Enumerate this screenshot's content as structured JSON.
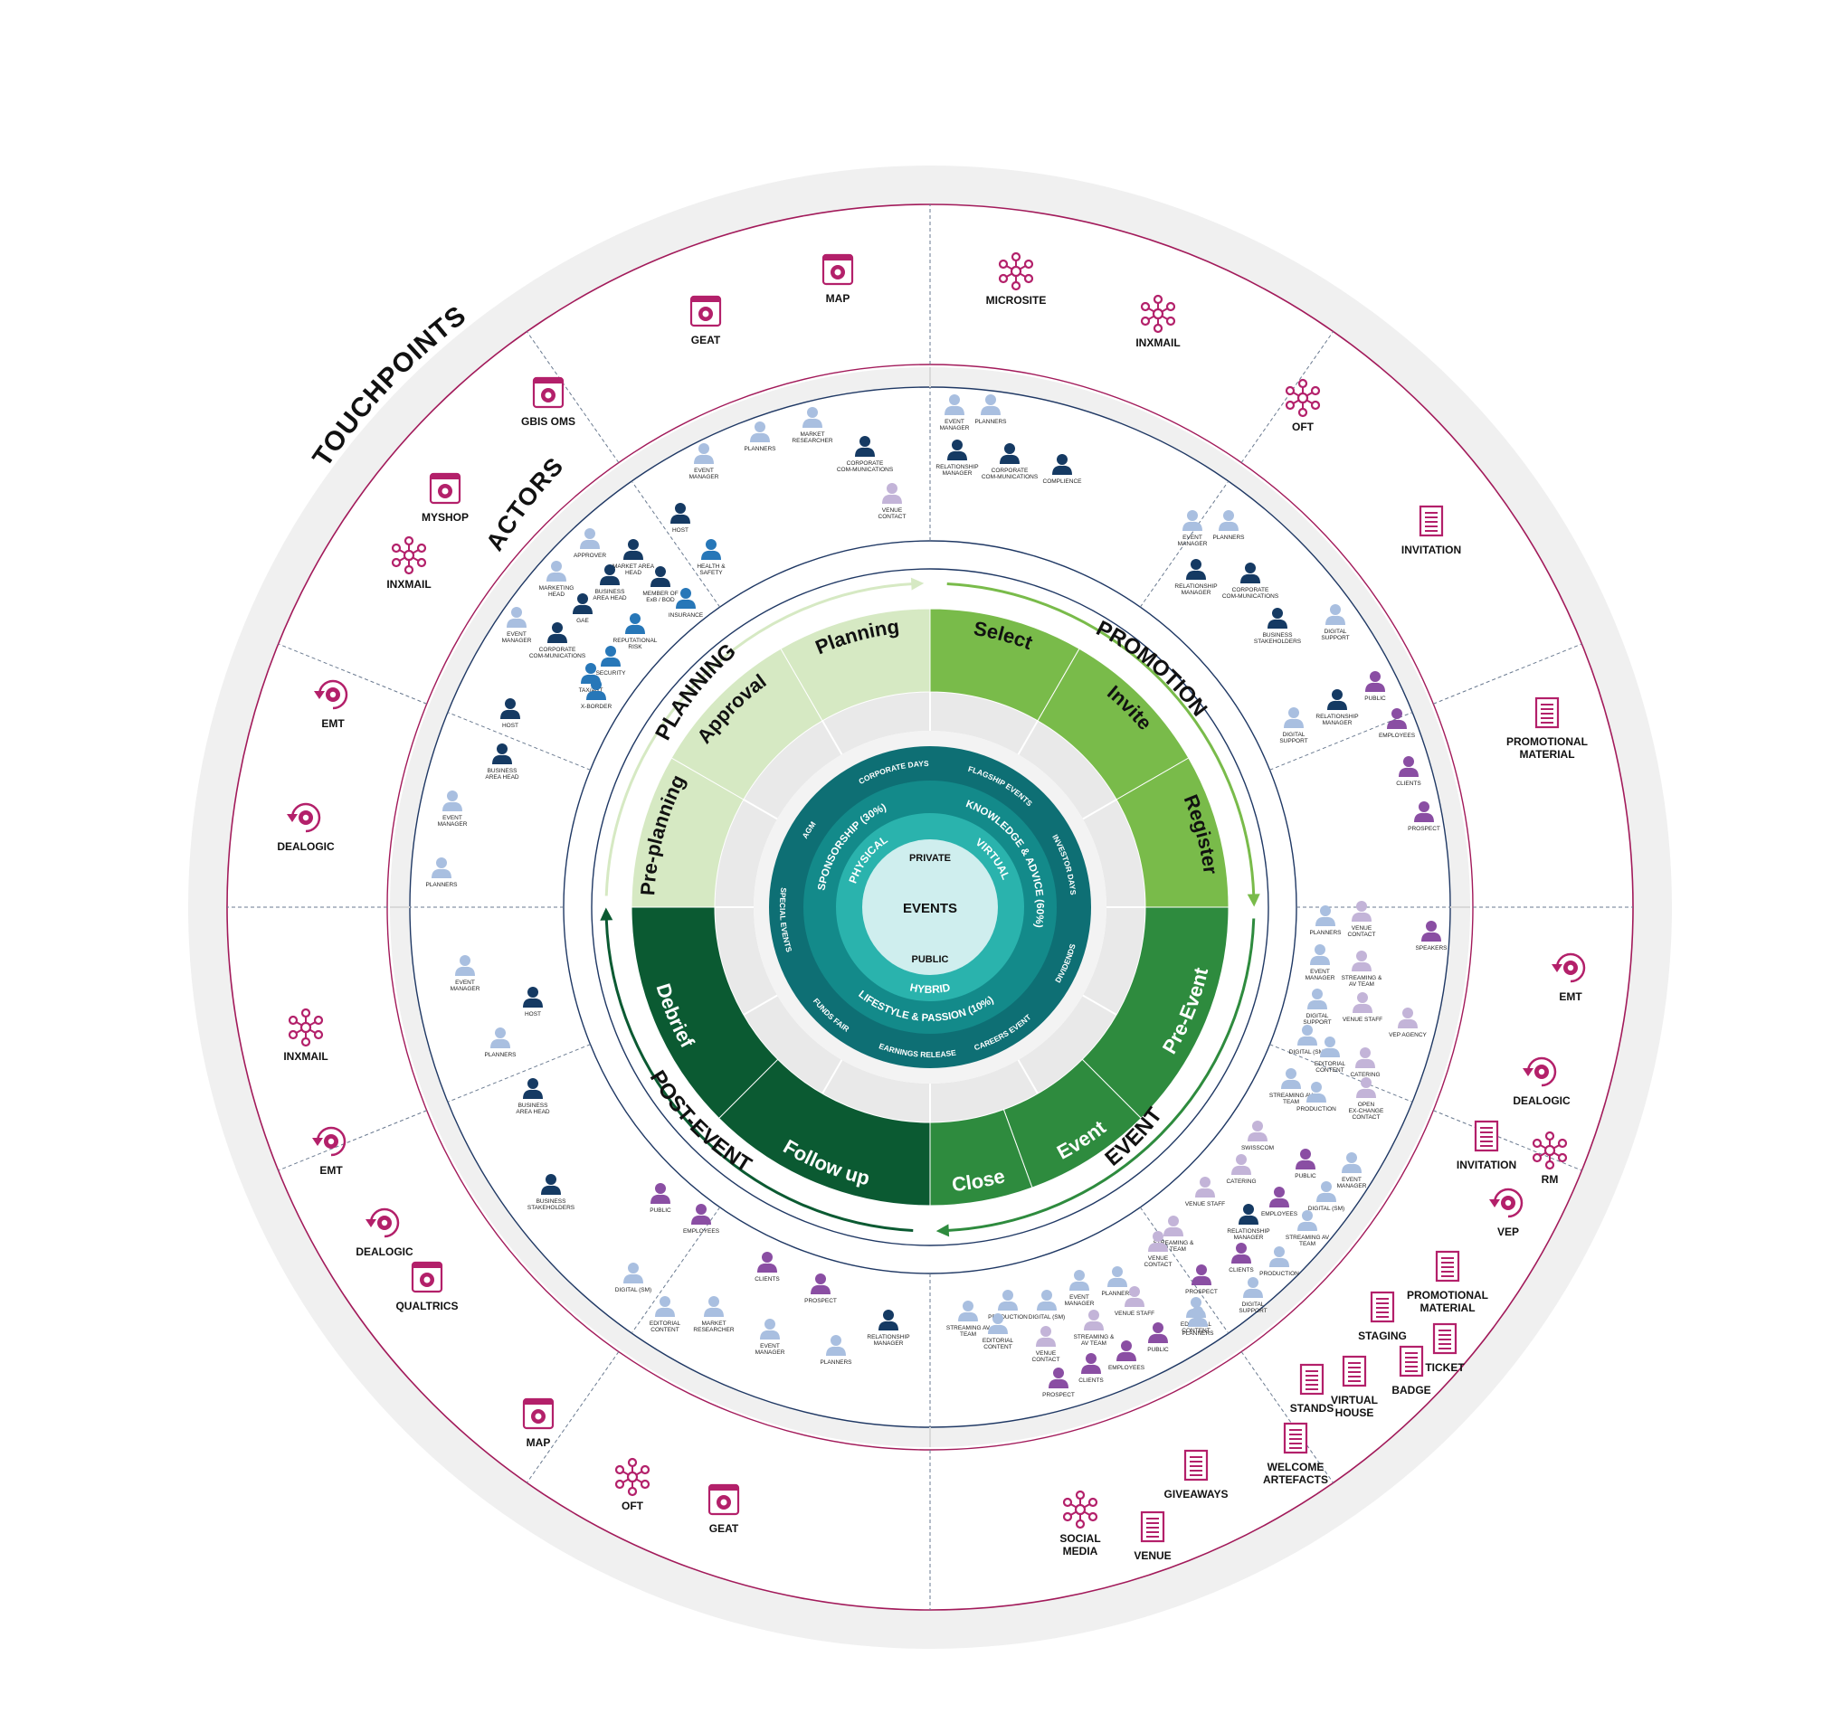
{
  "colors": {
    "magenta": "#b3206a",
    "dark_green": "#0b5a32",
    "mid_green": "#2e8b3e",
    "light_green": "#79bb4a",
    "pale_green": "#d6e9c3",
    "navy": "#1f3864",
    "ring_grey": "#f0f0f0",
    "actor_light": "#a9bfe0",
    "actor_dark": "#153a63",
    "actor_purple": "#8a4ea3",
    "actor_blue": "#2777b8",
    "teal_core": "#0f7a7a"
  },
  "ring_titles": {
    "touchpoints": "TOUCHPOINTS",
    "actors": "ACTORS"
  },
  "phases": [
    "PLANNING",
    "PROMOTION",
    "EVENT",
    "POST-EVENT"
  ],
  "steps": [
    "Pre-planning",
    "Approval",
    "Planning",
    "Select",
    "Invite",
    "Register",
    "Pre-Event",
    "Event",
    "Close",
    "Follow up",
    "Debrief"
  ],
  "core": {
    "center": "EVENTS",
    "private": "PRIVATE",
    "public": "PUBLIC",
    "physical": "PHYSICAL",
    "virtual": "VIRTUAL",
    "hybrid": "HYBRID",
    "sponsorship": "SPONSORSHIP (30%)",
    "knowledge": "KNOWLEDGE & ADVICE (60%)",
    "lifestyle": "LIFESTYLE & PASSION (10%)",
    "outer": [
      "CORPORATE DAYS",
      "FLAGSHIP EVENTS",
      "INVESTOR DAYS",
      "DIVIDENDS",
      "CAREERS EVENT",
      "EARNINGS RELEASE",
      "FUNDS FAIR",
      "SPECIAL EVENTS",
      "AGM"
    ]
  },
  "touchpoints": [
    {
      "label": "MAP",
      "icon": "gear-doc-icon"
    },
    {
      "label": "GEAT",
      "icon": "gear-doc-icon"
    },
    {
      "label": "GBIS OMS",
      "icon": "gear-doc-icon"
    },
    {
      "label": "MYSHOP",
      "icon": "gear-doc-icon"
    },
    {
      "label": "INXMAIL",
      "icon": "network-icon"
    },
    {
      "label": "EMT",
      "icon": "gear-cycle-icon"
    },
    {
      "label": "DEALOGIC",
      "icon": "gear-cycle-icon"
    },
    {
      "label": "MICROSITE",
      "icon": "network-icon"
    },
    {
      "label": "INXMAIL",
      "icon": "network-icon"
    },
    {
      "label": "OFT",
      "icon": "network-icon"
    },
    {
      "label": "INVITATION",
      "icon": "document-icon"
    },
    {
      "label": "PROMOTIONAL MATERIAL",
      "icon": "document-icon"
    },
    {
      "label": "EMT",
      "icon": "gear-cycle-icon"
    },
    {
      "label": "DEALOGIC",
      "icon": "gear-cycle-icon"
    },
    {
      "label": "INVITATION",
      "icon": "document-icon"
    },
    {
      "label": "RM",
      "icon": "network-icon"
    },
    {
      "label": "VEP",
      "icon": "gear-cycle-icon"
    },
    {
      "label": "PROMOTIONAL MATERIAL",
      "icon": "document-icon"
    },
    {
      "label": "STAGING",
      "icon": "document-icon"
    },
    {
      "label": "TICKET",
      "icon": "document-icon"
    },
    {
      "label": "BADGE",
      "icon": "document-icon"
    },
    {
      "label": "VIRTUAL HOUSE",
      "icon": "document-icon"
    },
    {
      "label": "STANDS",
      "icon": "document-icon"
    },
    {
      "label": "WELCOME ARTEFACTS",
      "icon": "document-icon"
    },
    {
      "label": "GIVEAWAYS",
      "icon": "document-icon"
    },
    {
      "label": "VENUE",
      "icon": "document-icon"
    },
    {
      "label": "SOCIAL MEDIA",
      "icon": "network-icon"
    },
    {
      "label": "GEAT",
      "icon": "gear-doc-icon"
    },
    {
      "label": "OFT",
      "icon": "network-icon"
    },
    {
      "label": "MAP",
      "icon": "gear-doc-icon"
    },
    {
      "label": "INXMAIL",
      "icon": "network-icon"
    },
    {
      "label": "EMT",
      "icon": "gear-cycle-icon"
    },
    {
      "label": "DEALOGIC",
      "icon": "gear-cycle-icon"
    },
    {
      "label": "QUALTRICS",
      "icon": "gear-doc-icon"
    }
  ],
  "actors": [
    {
      "label": "EVENT MANAGER",
      "tone": "light"
    },
    {
      "label": "PLANNERS",
      "tone": "light"
    },
    {
      "label": "MARKET RESEARCHER",
      "tone": "light"
    },
    {
      "label": "CORPORATE COM-MUNICATIONS",
      "tone": "dark"
    },
    {
      "label": "VENUE CONTACT",
      "tone": "lilac"
    },
    {
      "label": "HOST",
      "tone": "dark"
    },
    {
      "label": "APPROVER",
      "tone": "light"
    },
    {
      "label": "MARKET AREA HEAD",
      "tone": "dark"
    },
    {
      "label": "HEALTH & SAFETY",
      "tone": "blue"
    },
    {
      "label": "BUSINESS AREA HEAD",
      "tone": "dark"
    },
    {
      "label": "MARKETING HEAD",
      "tone": "light"
    },
    {
      "label": "MEMBER OF ExB / BOD",
      "tone": "dark"
    },
    {
      "label": "INSURANCE",
      "tone": "blue"
    },
    {
      "label": "GAE",
      "tone": "dark"
    },
    {
      "label": "REPUTATIONAL RISK",
      "tone": "blue"
    },
    {
      "label": "EVENT MANAGER",
      "tone": "light"
    },
    {
      "label": "CORPORATE COM-MUNICATIONS",
      "tone": "dark"
    },
    {
      "label": "SECURITY",
      "tone": "blue"
    },
    {
      "label": "TAX/ART",
      "tone": "blue"
    },
    {
      "label": "X-BORDER",
      "tone": "blue"
    },
    {
      "label": "HOST",
      "tone": "dark"
    },
    {
      "label": "BUSINESS AREA HEAD",
      "tone": "dark"
    },
    {
      "label": "EVENT MANAGER",
      "tone": "light"
    },
    {
      "label": "PLANNERS",
      "tone": "light"
    },
    {
      "label": "EVENT MANAGER",
      "tone": "light"
    },
    {
      "label": "PLANNERS",
      "tone": "light"
    },
    {
      "label": "RELATIONSHIP MANAGER",
      "tone": "dark"
    },
    {
      "label": "CORPORATE COM-MUNICATIONS",
      "tone": "dark"
    },
    {
      "label": "COMPLIENCE",
      "tone": "dark"
    },
    {
      "label": "EVENT MANAGER",
      "tone": "light"
    },
    {
      "label": "PLANNERS",
      "tone": "light"
    },
    {
      "label": "RELATIONSHIP MANAGER",
      "tone": "dark"
    },
    {
      "label": "CORPORATE COM-MUNICATIONS",
      "tone": "dark"
    },
    {
      "label": "BUSINESS STAKEHOLDERS",
      "tone": "dark"
    },
    {
      "label": "DIGITAL SUPPORT",
      "tone": "light"
    },
    {
      "label": "PUBLIC",
      "tone": "purple"
    },
    {
      "label": "RELATIONSHIP MANAGER",
      "tone": "dark"
    },
    {
      "label": "DIGITAL SUPPORT",
      "tone": "light"
    },
    {
      "label": "EMPLOYEES",
      "tone": "purple"
    },
    {
      "label": "CLIENTS",
      "tone": "purple"
    },
    {
      "label": "PROSPECT",
      "tone": "purple"
    },
    {
      "label": "PLANNERS",
      "tone": "light"
    },
    {
      "label": "VENUE CONTACT",
      "tone": "lilac"
    },
    {
      "label": "SPEAKERS",
      "tone": "purple"
    },
    {
      "label": "EVENT MANAGER",
      "tone": "light"
    },
    {
      "label": "STREAMING & AV TEAM",
      "tone": "lilac"
    },
    {
      "label": "DIGITAL SUPPORT",
      "tone": "light"
    },
    {
      "label": "VENUE STAFF",
      "tone": "lilac"
    },
    {
      "label": "VEP AGENCY",
      "tone": "lilac"
    },
    {
      "label": "DIGITAL (SM)",
      "tone": "light"
    },
    {
      "label": "EDITORIAL CONTENT",
      "tone": "light"
    },
    {
      "label": "CATERING",
      "tone": "lilac"
    },
    {
      "label": "STREAMING AV TEAM",
      "tone": "light"
    },
    {
      "label": "PRODUCTION",
      "tone": "light"
    },
    {
      "label": "OPEN EX-CHANGE CONTACT",
      "tone": "lilac"
    },
    {
      "label": "SWISSCOM",
      "tone": "lilac"
    },
    {
      "label": "CATERING",
      "tone": "lilac"
    },
    {
      "label": "PUBLIC",
      "tone": "purple"
    },
    {
      "label": "EVENT MANAGER",
      "tone": "light"
    },
    {
      "label": "VENUE STAFF",
      "tone": "lilac"
    },
    {
      "label": "EMPLOYEES",
      "tone": "purple"
    },
    {
      "label": "DIGITAL (SM)",
      "tone": "light"
    },
    {
      "label": "STREAMING & AV TEAM",
      "tone": "lilac"
    },
    {
      "label": "RELATIONSHIP MANAGER",
      "tone": "dark"
    },
    {
      "label": "STREAMING AV TEAM",
      "tone": "light"
    },
    {
      "label": "VENUE CONTACT",
      "tone": "lilac"
    },
    {
      "label": "CLIENTS",
      "tone": "purple"
    },
    {
      "label": "PRODUCTION",
      "tone": "light"
    },
    {
      "label": "PROSPECT",
      "tone": "purple"
    },
    {
      "label": "DIGITAL SUPPORT",
      "tone": "light"
    },
    {
      "label": "EDITORIAL CONTENT",
      "tone": "light"
    },
    {
      "label": "PLANNERS",
      "tone": "light"
    },
    {
      "label": "PLANNERS",
      "tone": "light"
    },
    {
      "label": "EVENT MANAGER",
      "tone": "light"
    },
    {
      "label": "DIGITAL (SM)",
      "tone": "light"
    },
    {
      "label": "PRODUCTION",
      "tone": "light"
    },
    {
      "label": "STREAMING AV TEAM",
      "tone": "light"
    },
    {
      "label": "VENUE STAFF",
      "tone": "lilac"
    },
    {
      "label": "EDITORIAL CONTENT",
      "tone": "light"
    },
    {
      "label": "VENUE CONTACT",
      "tone": "lilac"
    },
    {
      "label": "STREAMING & AV TEAM",
      "tone": "lilac"
    },
    {
      "label": "PUBLIC",
      "tone": "purple"
    },
    {
      "label": "EMPLOYEES",
      "tone": "purple"
    },
    {
      "label": "CLIENTS",
      "tone": "purple"
    },
    {
      "label": "PROSPECT",
      "tone": "purple"
    },
    {
      "label": "PUBLIC",
      "tone": "purple"
    },
    {
      "label": "EMPLOYEES",
      "tone": "purple"
    },
    {
      "label": "CLIENTS",
      "tone": "purple"
    },
    {
      "label": "PROSPECT",
      "tone": "purple"
    },
    {
      "label": "RELATIONSHIP MANAGER",
      "tone": "dark"
    },
    {
      "label": "DIGITAL (SM)",
      "tone": "light"
    },
    {
      "label": "EDITORIAL CONTENT",
      "tone": "light"
    },
    {
      "label": "MARKET RESEARCHER",
      "tone": "light"
    },
    {
      "label": "EVENT MANAGER",
      "tone": "light"
    },
    {
      "label": "PLANNERS",
      "tone": "light"
    },
    {
      "label": "EVENT MANAGER",
      "tone": "light"
    },
    {
      "label": "HOST",
      "tone": "dark"
    },
    {
      "label": "PLANNERS",
      "tone": "light"
    },
    {
      "label": "BUSINESS AREA HEAD",
      "tone": "dark"
    },
    {
      "label": "BUSINESS STAKEHOLDERS",
      "tone": "dark"
    }
  ]
}
